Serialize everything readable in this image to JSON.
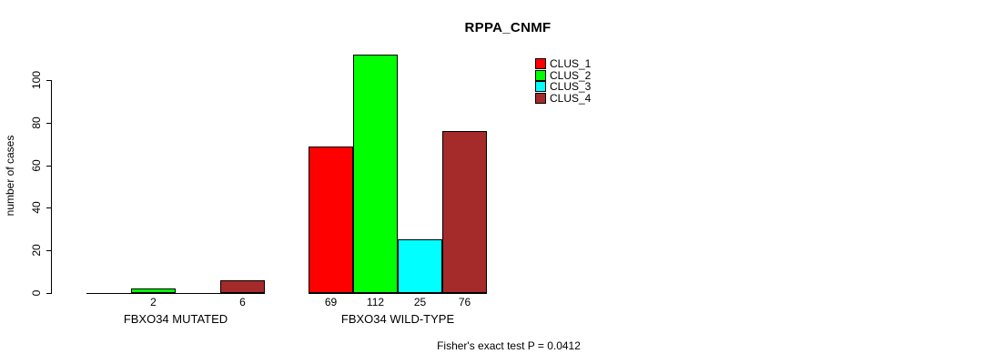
{
  "title": "RPPA_CNMF",
  "footer_text": "Fisher's exact test P = 0.0412",
  "colors": {
    "clus_1": "#FF0000",
    "clus_2": "#00FF00",
    "clus_3": "#00FFFF",
    "clus_4": "#A52A2A",
    "axis": "#000000",
    "background": "#FFFFFF"
  },
  "chart_data": {
    "type": "bar",
    "title": "RPPA_CNMF",
    "xlabel": "",
    "ylabel": "number of cases",
    "ylim": [
      0,
      112
    ],
    "yticks": [
      0,
      20,
      40,
      60,
      80,
      100
    ],
    "grid": false,
    "legend_position": "top-right",
    "annotation": "Fisher's exact test P = 0.0412",
    "series": [
      {
        "name": "CLUS_1",
        "color": "#FF0000"
      },
      {
        "name": "CLUS_2",
        "color": "#00FF00"
      },
      {
        "name": "CLUS_3",
        "color": "#00FFFF"
      },
      {
        "name": "CLUS_4",
        "color": "#A52A2A"
      }
    ],
    "groups": [
      {
        "label": "FBXO34 MUTATED",
        "values": [
          0,
          2,
          0,
          6
        ],
        "bar_labels": [
          "",
          "2",
          "",
          "6"
        ]
      },
      {
        "label": "FBXO34 WILD-TYPE",
        "values": [
          69,
          112,
          25,
          76
        ],
        "bar_labels": [
          "69",
          "112",
          "25",
          "76"
        ]
      }
    ]
  }
}
